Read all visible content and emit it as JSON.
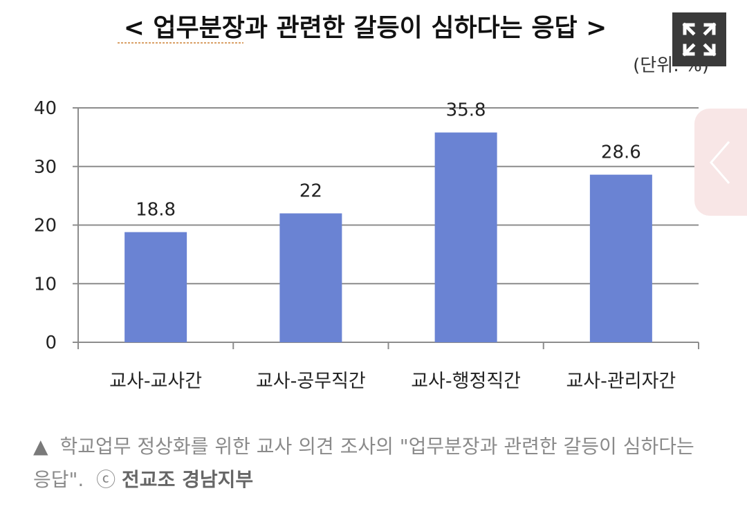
{
  "chart_data": {
    "type": "bar",
    "title": "< 업무분장과 관련한 갈등이 심하다는 응답 >",
    "unit_label": "(단위: %)",
    "categories": [
      "교사-교사간",
      "교사-공무직간",
      "교사-행정직간",
      "교사-관리자간"
    ],
    "values": [
      18.8,
      22,
      35.8,
      28.6
    ],
    "value_labels": [
      "18.8",
      "22",
      "35.8",
      "28.6"
    ],
    "yticks": [
      0,
      10,
      20,
      30,
      40
    ],
    "ylim": [
      0,
      40
    ],
    "grid": true,
    "legend": "none",
    "bar_color": "#6a83d3"
  },
  "caption": {
    "marker": "▲",
    "text": "학교업무 정상화를 위한 교사 의견 조사의 \"업무분장과 관련한 갈등이 심하다는 응답\".",
    "copyright_symbol": "ⓒ",
    "credit": "전교조 경남지부"
  },
  "controls": {
    "expand_icon": "expand-icon",
    "prev_icon": "chevron-left-icon"
  }
}
